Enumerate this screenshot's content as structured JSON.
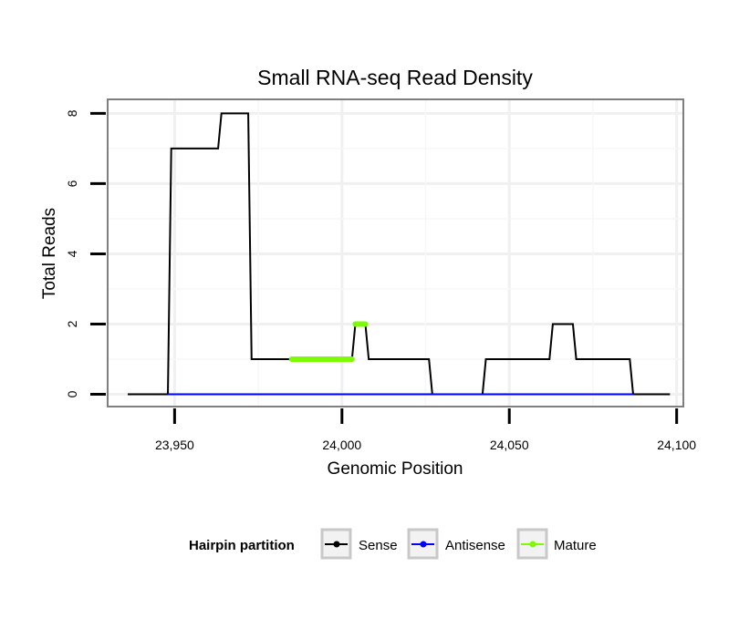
{
  "chart_data": {
    "type": "line",
    "title": "Small RNA-seq Read Density",
    "xlabel": "Genomic Position",
    "ylabel": "Total Reads",
    "xlim": [
      23930,
      24102
    ],
    "ylim": [
      -0.35,
      8.4
    ],
    "x_ticks": [
      23950,
      24000,
      24050,
      24100
    ],
    "x_tick_labels": [
      "23,950",
      "24,000",
      "24,050",
      "24,100"
    ],
    "y_ticks": [
      0,
      2,
      4,
      6,
      8
    ],
    "y_tick_labels": [
      "0",
      "2",
      "4",
      "6",
      "8"
    ],
    "grid": true,
    "legend": {
      "title": "Hairpin partition",
      "position": "bottom",
      "entries": [
        {
          "label": "Sense",
          "color": "#000000"
        },
        {
          "label": "Antisense",
          "color": "#0000ff"
        },
        {
          "label": "Mature",
          "color": "#7cfc00"
        }
      ]
    },
    "series": [
      {
        "name": "Sense",
        "color": "#000000",
        "x": [
          23936,
          23948,
          23949,
          23963,
          23964,
          23972,
          23973,
          23985,
          23986,
          24003,
          24004,
          24007,
          24008,
          24026,
          24027,
          24042,
          24043,
          24062,
          24063,
          24069,
          24070,
          24086,
          24087,
          24098
        ],
        "y": [
          0,
          0,
          7,
          7,
          8,
          8,
          1,
          1,
          1,
          1,
          2,
          2,
          1,
          1,
          0,
          0,
          1,
          1,
          2,
          2,
          1,
          1,
          0,
          0
        ]
      },
      {
        "name": "Antisense",
        "color": "#0000ff",
        "x": [
          23948,
          24087
        ],
        "y": [
          0,
          0
        ]
      },
      {
        "name": "Mature",
        "color": "#7cfc00",
        "segments": [
          {
            "x": [
              23985,
              24003
            ],
            "y": [
              1,
              1
            ]
          },
          {
            "x": [
              24004,
              24007
            ],
            "y": [
              2,
              2
            ]
          }
        ]
      }
    ]
  }
}
